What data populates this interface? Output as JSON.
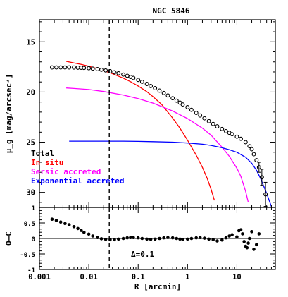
{
  "chart_data": [
    {
      "panel": "profile",
      "type": "line",
      "title": "NGC 5846",
      "xlabel": "R [arcmin]",
      "ylabel": "μ_g [mag/arcsec²]",
      "x_scale": "log",
      "y_inverted": true,
      "xlim": [
        0.001,
        60
      ],
      "ylim": [
        31.5,
        12.8
      ],
      "yticks": [
        "15",
        "20",
        "25",
        "30"
      ],
      "grid": false,
      "legend_position": "bottom-left",
      "vline_x": 0.026,
      "series": [
        {
          "name": "Total",
          "kind": "points",
          "color": "#000000",
          "x": [
            0.0018,
            0.0022,
            0.0027,
            0.0033,
            0.004,
            0.005,
            0.006,
            0.007,
            0.008,
            0.01,
            0.012,
            0.015,
            0.018,
            0.022,
            0.027,
            0.033,
            0.04,
            0.05,
            0.06,
            0.07,
            0.08,
            0.1,
            0.12,
            0.15,
            0.18,
            0.22,
            0.27,
            0.33,
            0.4,
            0.5,
            0.6,
            0.7,
            0.8,
            1.0,
            1.2,
            1.5,
            1.8,
            2.2,
            2.7,
            3.3,
            4.0,
            5.0,
            6.0,
            7.0,
            8.0,
            10.0,
            12.0,
            15.0,
            18.0,
            20.0,
            22.0,
            25.0,
            28.0,
            32.0,
            38.0
          ],
          "y": [
            17.55,
            17.55,
            17.55,
            17.55,
            17.55,
            17.56,
            17.57,
            17.58,
            17.6,
            17.63,
            17.67,
            17.72,
            17.78,
            17.85,
            17.93,
            18.03,
            18.13,
            18.26,
            18.38,
            18.5,
            18.6,
            18.8,
            18.98,
            19.2,
            19.4,
            19.62,
            19.86,
            20.1,
            20.34,
            20.62,
            20.86,
            21.06,
            21.24,
            21.52,
            21.78,
            22.08,
            22.34,
            22.62,
            22.9,
            23.18,
            23.42,
            23.68,
            23.9,
            24.06,
            24.2,
            24.45,
            24.66,
            25.0,
            25.4,
            25.7,
            26.2,
            26.8,
            27.5,
            28.5,
            30.2
          ]
        },
        {
          "name": "In situ",
          "kind": "curve",
          "color": "#ff0000",
          "x": [
            0.0035,
            0.005,
            0.007,
            0.01,
            0.015,
            0.02,
            0.03,
            0.05,
            0.07,
            0.1,
            0.15,
            0.2,
            0.3,
            0.5,
            0.7,
            1.0,
            1.5,
            2.0,
            2.5,
            3.0,
            3.5
          ],
          "y": [
            16.95,
            17.1,
            17.25,
            17.43,
            17.67,
            17.87,
            18.17,
            18.62,
            18.97,
            19.4,
            19.97,
            20.46,
            21.25,
            22.6,
            23.6,
            24.8,
            26.3,
            27.5,
            28.6,
            29.7,
            30.8
          ]
        },
        {
          "name": "Sersic accreted",
          "kind": "curve",
          "color": "#ff00ff",
          "x": [
            0.0035,
            0.005,
            0.01,
            0.02,
            0.05,
            0.1,
            0.2,
            0.5,
            1.0,
            2.0,
            3.0,
            5.0,
            7.0,
            10.0,
            12.0,
            15.0,
            17.0
          ],
          "y": [
            19.6,
            19.65,
            19.75,
            19.95,
            20.3,
            20.65,
            21.1,
            21.9,
            22.65,
            23.6,
            24.3,
            25.5,
            26.4,
            27.6,
            28.4,
            29.9,
            31.0
          ]
        },
        {
          "name": "Exponential accreted",
          "kind": "curve",
          "color": "#0000ff",
          "x": [
            0.004,
            0.01,
            0.02,
            0.05,
            0.1,
            0.2,
            0.5,
            1.0,
            2.0,
            3.0,
            5.0,
            7.0,
            10.0,
            15.0,
            20.0,
            25.0,
            30.0,
            35.0,
            40.0,
            45.0,
            50.0
          ],
          "y": [
            24.9,
            24.9,
            24.9,
            24.9,
            24.92,
            24.95,
            25.0,
            25.08,
            25.2,
            25.32,
            25.55,
            25.75,
            26.0,
            26.5,
            27.1,
            27.8,
            28.6,
            29.4,
            30.1,
            30.8,
            31.4
          ]
        }
      ],
      "error_bars": [
        {
          "x": 28.0,
          "y": 27.5,
          "err": 0.5
        },
        {
          "x": 32.0,
          "y": 28.5,
          "err": 0.8
        },
        {
          "x": 38.0,
          "y": 30.2,
          "err": 1.2
        }
      ]
    },
    {
      "panel": "residuals",
      "type": "scatter",
      "xlabel": "R [arcmin]",
      "ylabel": "O–C",
      "x_scale": "log",
      "xlim": [
        0.001,
        60
      ],
      "ylim": [
        -1,
        1
      ],
      "xticks": [
        "0.001",
        "0.01",
        "0.1",
        "1",
        "10"
      ],
      "yticks": [
        "1",
        "0.5",
        "0",
        "-0.5",
        "-1"
      ],
      "hline_y": 0,
      "vline_x": 0.026,
      "annotation": "Δ=0.1",
      "series": [
        {
          "name": "",
          "color": "#000000",
          "x": [
            0.0018,
            0.0022,
            0.0027,
            0.0033,
            0.004,
            0.005,
            0.006,
            0.007,
            0.008,
            0.01,
            0.012,
            0.015,
            0.018,
            0.022,
            0.027,
            0.033,
            0.04,
            0.05,
            0.06,
            0.07,
            0.08,
            0.1,
            0.12,
            0.15,
            0.18,
            0.22,
            0.27,
            0.33,
            0.4,
            0.5,
            0.6,
            0.7,
            0.8,
            1.0,
            1.2,
            1.5,
            1.8,
            2.2,
            2.7,
            3.3,
            4.0,
            5.0,
            6.0,
            7.0,
            8.0,
            10.0,
            11.0,
            12.0,
            13.0,
            14.0,
            15.0,
            16.0,
            17.0,
            18.0,
            20.0,
            22.0,
            25.0,
            28.0
          ],
          "y": [
            0.62,
            0.58,
            0.53,
            0.48,
            0.44,
            0.38,
            0.32,
            0.26,
            0.2,
            0.14,
            0.08,
            0.03,
            -0.01,
            -0.03,
            -0.04,
            -0.04,
            -0.02,
            0.0,
            0.02,
            0.03,
            0.03,
            0.02,
            0.0,
            -0.02,
            -0.03,
            -0.02,
            0.0,
            0.02,
            0.03,
            0.02,
            0.0,
            -0.02,
            -0.03,
            -0.02,
            0.0,
            0.02,
            0.03,
            0.01,
            -0.02,
            -0.04,
            -0.08,
            -0.05,
            0.02,
            0.08,
            0.12,
            0.05,
            0.25,
            0.28,
            0.15,
            -0.1,
            -0.25,
            -0.3,
            -0.15,
            0.0,
            0.22,
            -0.35,
            -0.2,
            0.15
          ]
        }
      ]
    }
  ],
  "legend": [
    {
      "label": "Total",
      "color": "#000000"
    },
    {
      "label": "In situ",
      "color": "#ff0000"
    },
    {
      "label": "Sersic accreted",
      "color": "#ff00ff"
    },
    {
      "label": "Exponential accreted",
      "color": "#0000ff"
    }
  ]
}
